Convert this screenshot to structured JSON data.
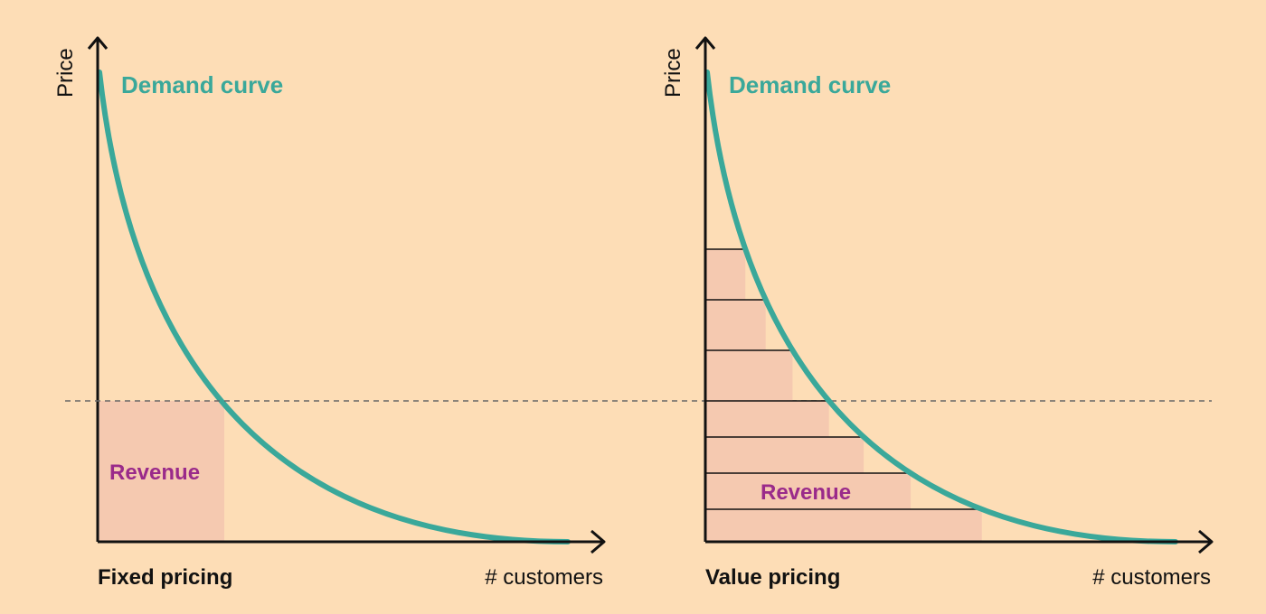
{
  "colors": {
    "background": "#FDDDB6",
    "curve": "#3AA89A",
    "revenue_fill": "#F5C9B0",
    "revenue_text": "#9A2A8A",
    "axis": "#111111",
    "dashed_line": "#666666"
  },
  "left_panel": {
    "y_axis_label": "Price",
    "curve_label": "Demand curve",
    "revenue_label": "Revenue",
    "title": "Fixed pricing",
    "x_axis_label": "# customers"
  },
  "right_panel": {
    "y_axis_label": "Price",
    "curve_label": "Demand curve",
    "revenue_label": "Revenue",
    "title": "Value pricing",
    "x_axis_label": "# customers"
  }
}
